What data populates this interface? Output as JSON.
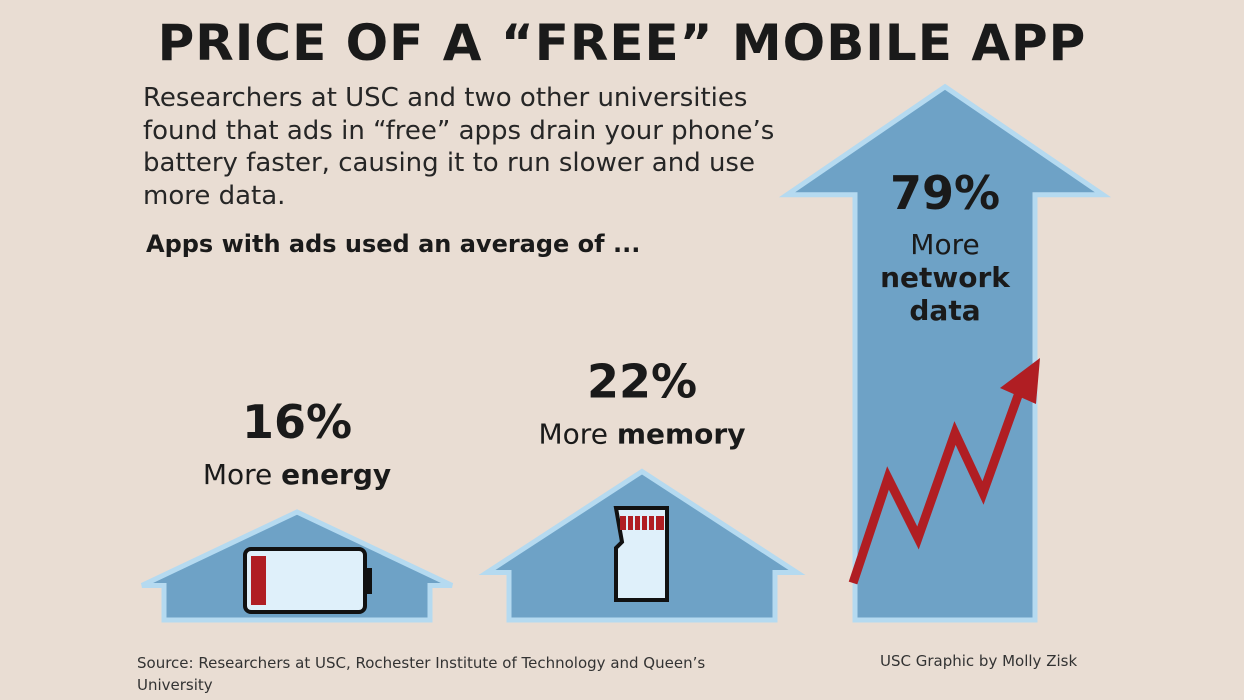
{
  "chart_data": {
    "type": "arrow",
    "title": "PRICE OF A “FREE” MOBILE APP",
    "subtitle": "Researchers at USC and two other universities found that ads in “free” apps drain your phone’s battery faster, causing it to run slower and use more data.",
    "annotation": "Apps with ads used an average of ...",
    "prefixes": [
      "More",
      "More",
      "More"
    ],
    "categories": [
      "energy",
      "memory",
      "network data"
    ],
    "values": [
      16,
      22,
      79
    ],
    "value_labels": [
      "16%",
      "22%",
      "79%"
    ],
    "color": "#6ea2c6",
    "source": "Source: Researchers at USC, Rochester Institute of Technology and Queen’s University",
    "credit": "USC Graphic by Molly Zisk"
  }
}
